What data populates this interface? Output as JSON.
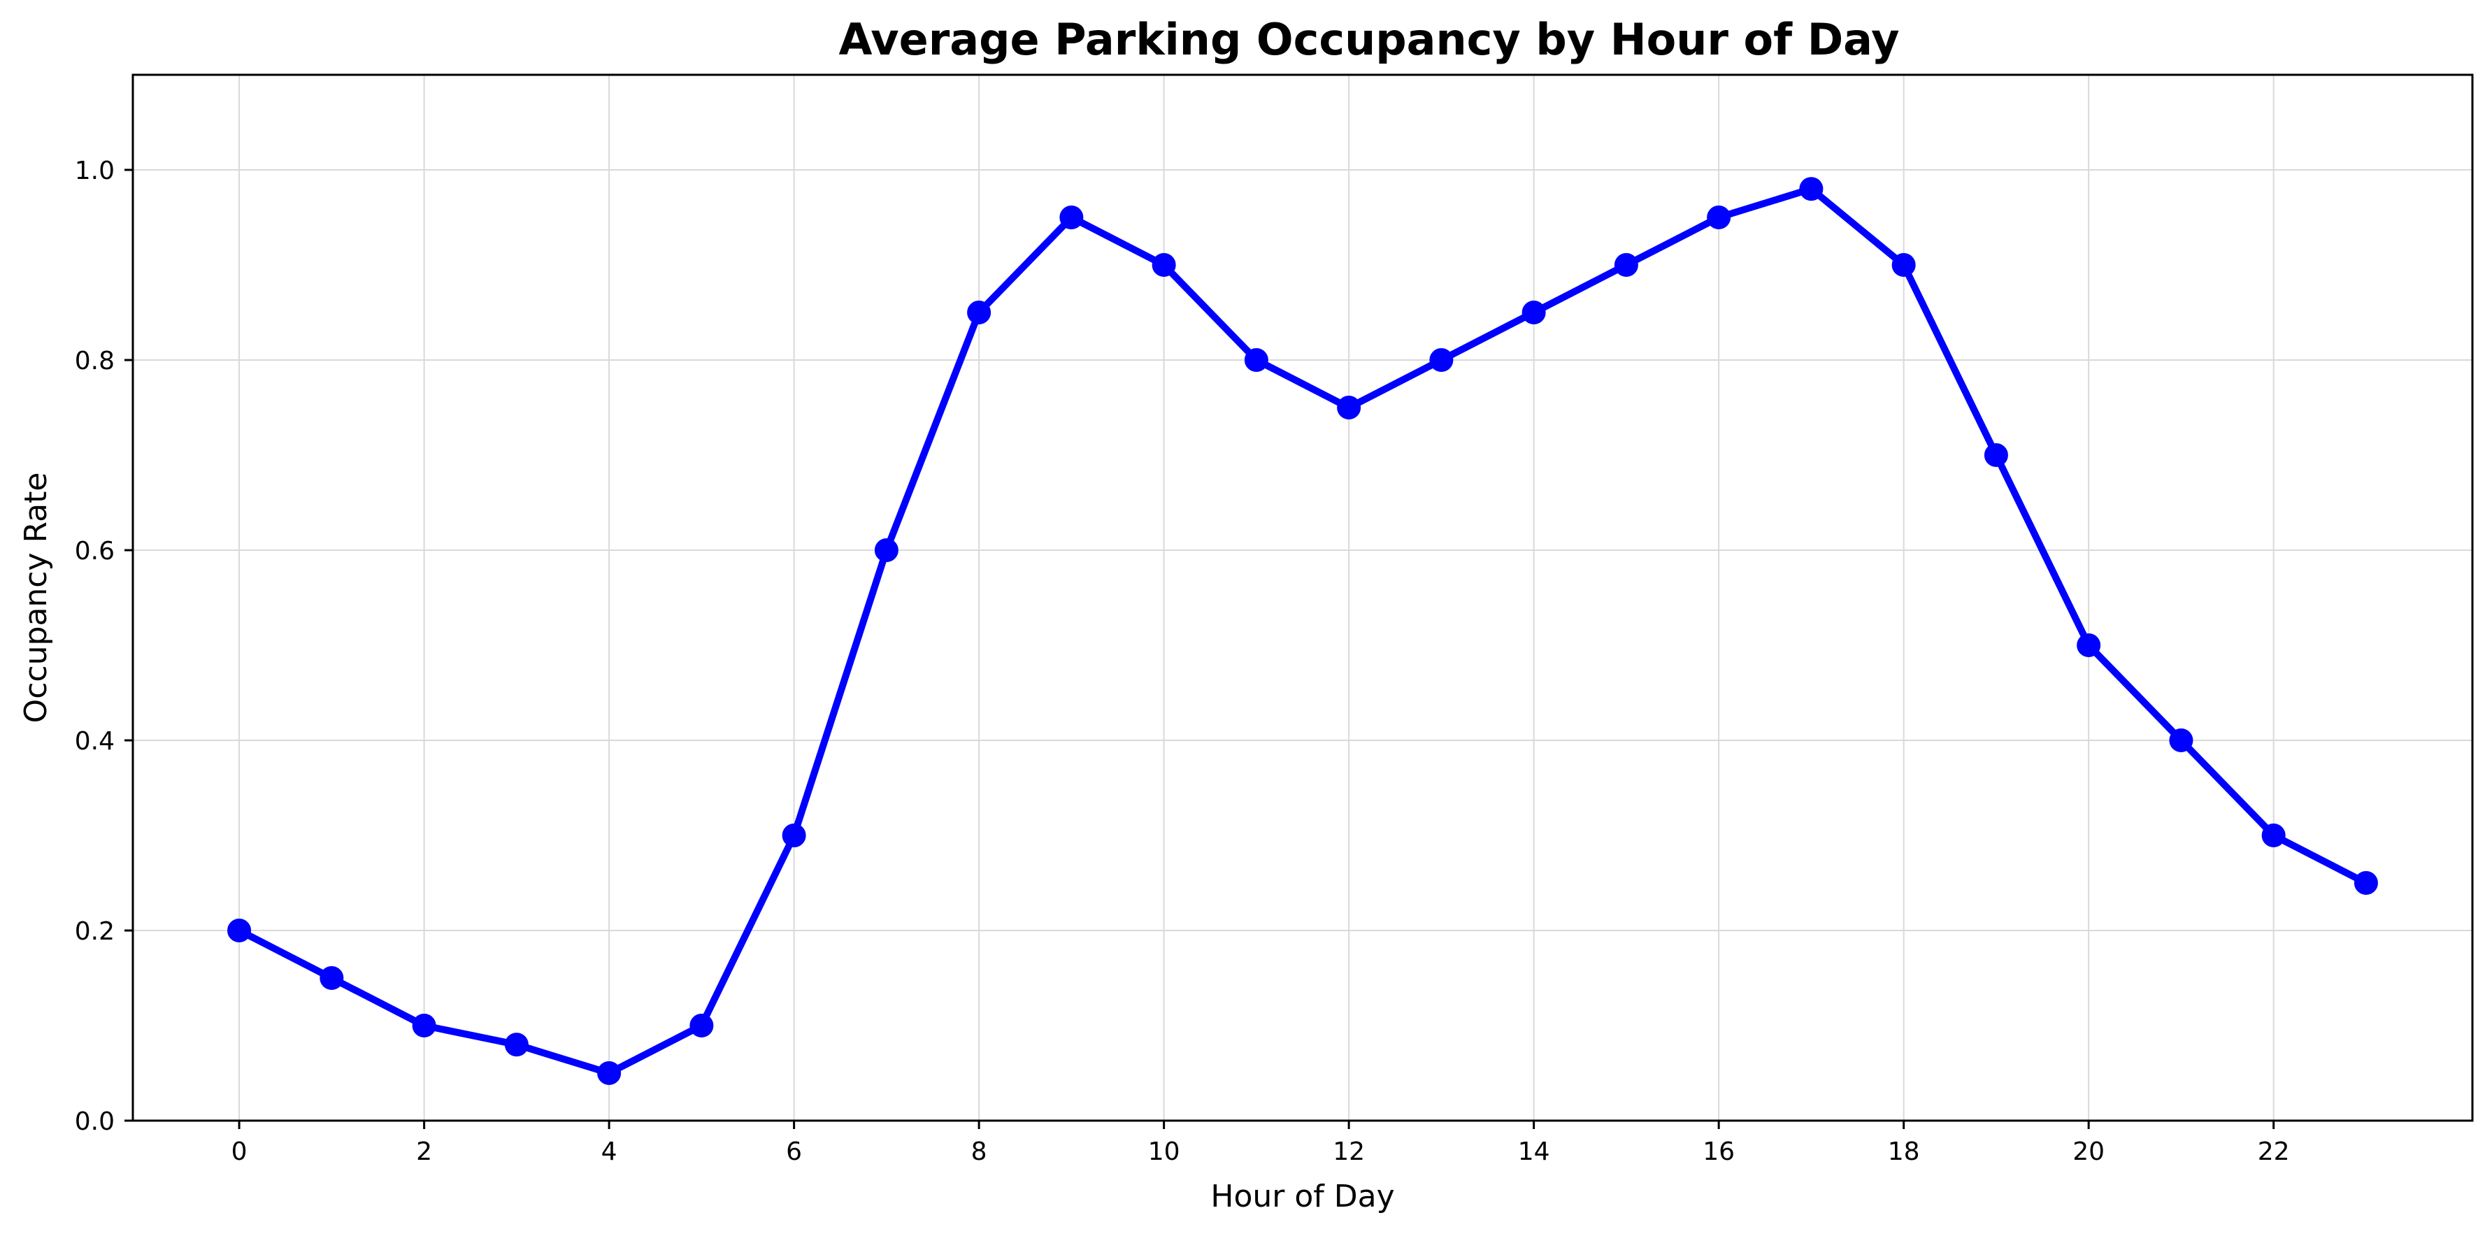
{
  "chart_data": {
    "type": "line",
    "title": "Average Parking Occupancy by Hour of Day",
    "xlabel": "Hour of Day",
    "ylabel": "Occupancy Rate",
    "x": [
      0,
      1,
      2,
      3,
      4,
      5,
      6,
      7,
      8,
      9,
      10,
      11,
      12,
      13,
      14,
      15,
      16,
      17,
      18,
      19,
      20,
      21,
      22,
      23
    ],
    "series": [
      {
        "values": [
          0.2,
          0.15,
          0.1,
          0.08,
          0.05,
          0.1,
          0.3,
          0.6,
          0.85,
          0.95,
          0.9,
          0.8,
          0.75,
          0.8,
          0.85,
          0.9,
          0.95,
          0.98,
          0.9,
          0.7,
          0.5,
          0.4,
          0.3,
          0.25
        ],
        "color": "#0000ff"
      }
    ],
    "xlim": [
      -1.15,
      24.15
    ],
    "ylim": [
      0.0,
      1.1
    ],
    "xticks": [
      0,
      2,
      4,
      6,
      8,
      10,
      12,
      14,
      16,
      18,
      20,
      22
    ],
    "xtick_labels": [
      "0",
      "2",
      "4",
      "6",
      "8",
      "10",
      "12",
      "14",
      "16",
      "18",
      "20",
      "22"
    ],
    "yticks": [
      0.0,
      0.2,
      0.4,
      0.6,
      0.8,
      1.0
    ],
    "ytick_labels": [
      "0.0",
      "0.2",
      "0.4",
      "0.6",
      "0.8",
      "1.0"
    ],
    "grid": true,
    "marker": "circle"
  }
}
